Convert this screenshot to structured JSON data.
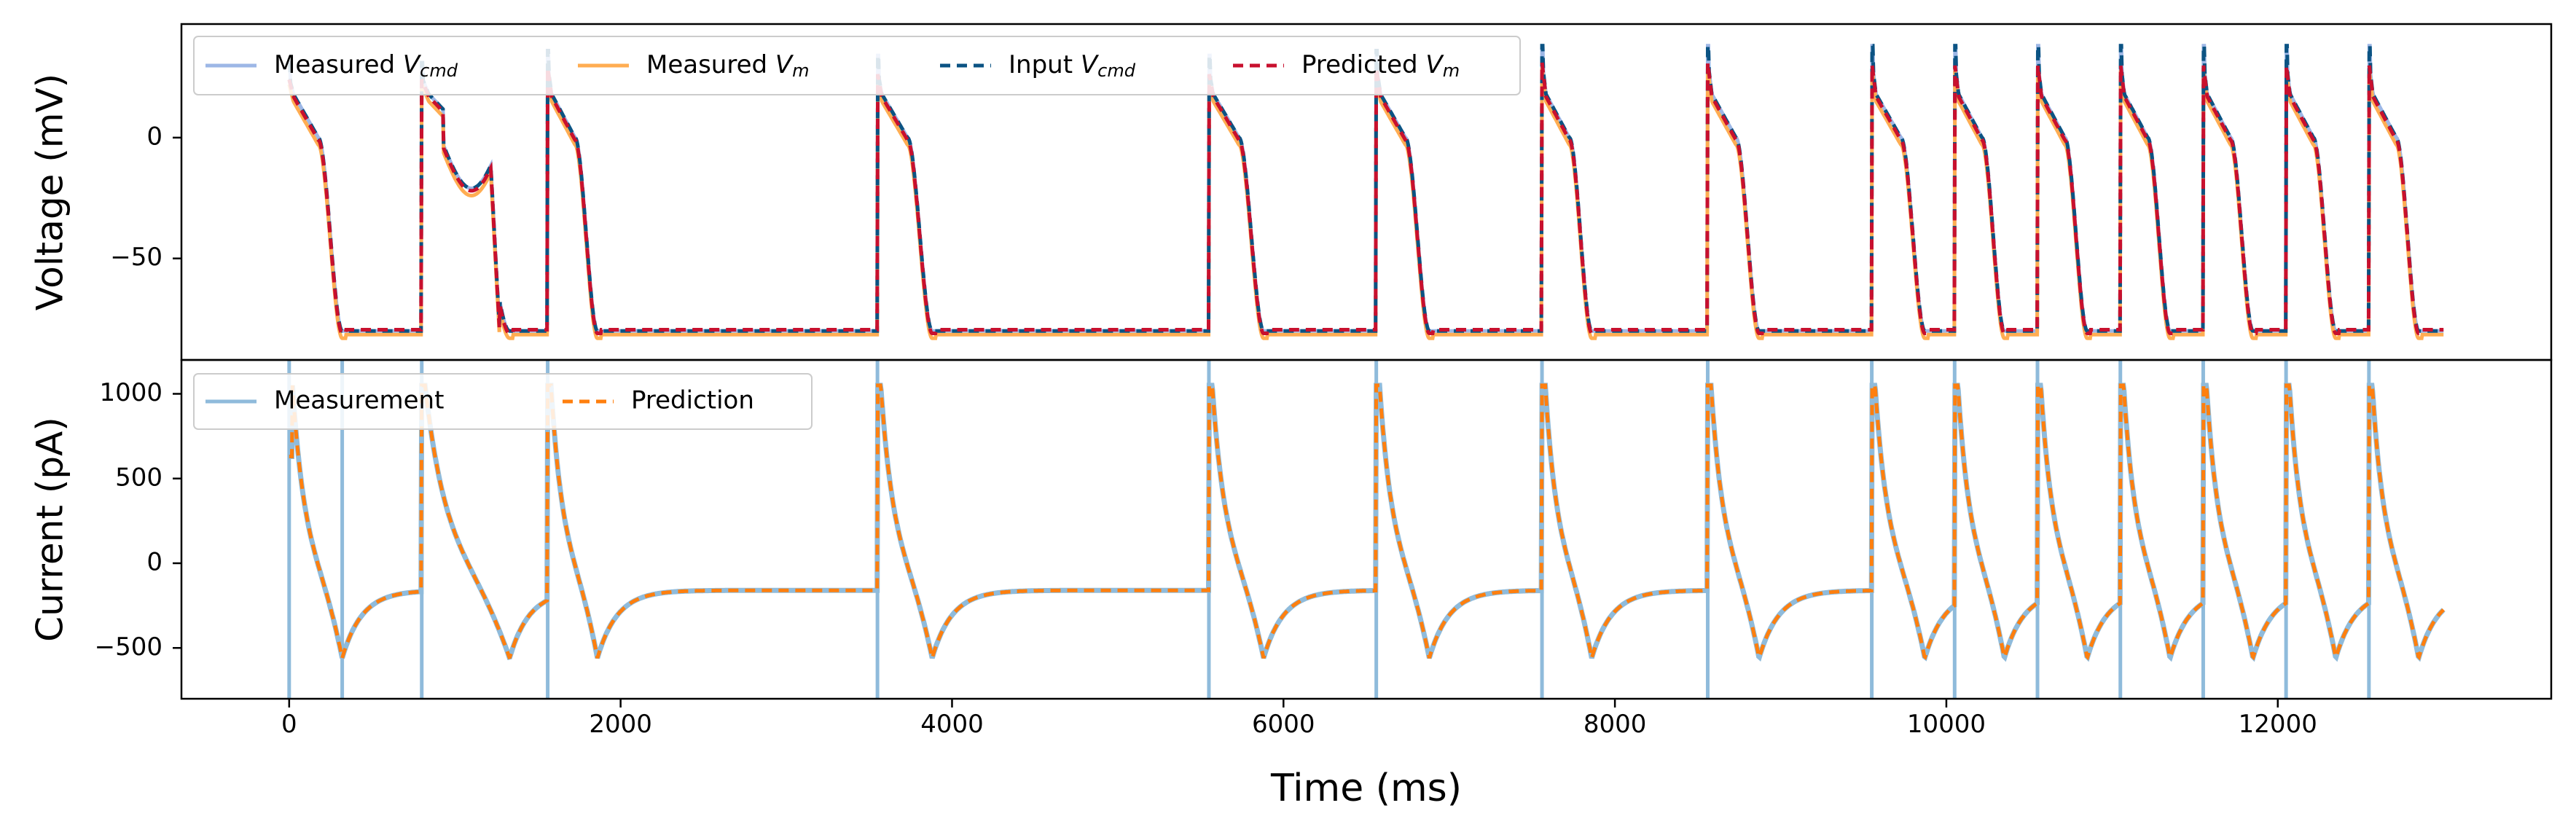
{
  "chart_data": {
    "type": "line",
    "xlabel": "Time (ms)",
    "x_ticks": [
      0,
      2000,
      4000,
      6000,
      8000,
      10000,
      12000
    ],
    "xlim": [
      -650,
      13650
    ],
    "panels": [
      {
        "id": "voltage",
        "ylabel": "Voltage (mV)",
        "ylim": [
          -92,
          47
        ],
        "y_ticks": [
          0,
          -50
        ],
        "legend_position": "top-left",
        "legend_columns": 4,
        "series": [
          {
            "name_prefix": "Measured ",
            "name_sym": "V",
            "name_sub": "cmd",
            "color": "#9db7e6",
            "style": "solid",
            "kind": "vcmd"
          },
          {
            "name_prefix": "Measured ",
            "name_sym": "V",
            "name_sub": "m",
            "color": "#ffad52",
            "style": "solid",
            "kind": "vm_meas"
          },
          {
            "name_prefix": "Input ",
            "name_sym": "V",
            "name_sub": "cmd",
            "color": "#0b5383",
            "style": "dashed",
            "kind": "vcmd"
          },
          {
            "name_prefix": "Predicted ",
            "name_sym": "V",
            "name_sub": "m",
            "color": "#c8102e",
            "style": "dashed",
            "kind": "vm_pred"
          }
        ]
      },
      {
        "id": "current",
        "ylabel": "Current (pA)",
        "ylim": [
          -800,
          1200
        ],
        "y_ticks": [
          1000,
          500,
          0,
          -500
        ],
        "legend_position": "top-left",
        "legend_columns": 2,
        "series": [
          {
            "name": "Measurement",
            "color": "#8fbbdb",
            "style": "solid",
            "kind": "i_meas"
          },
          {
            "name": "Prediction",
            "color": "#ff7f0e",
            "style": "dashed",
            "kind": "i_pred"
          }
        ]
      }
    ],
    "protocol": {
      "resting_mV": -80,
      "end_ms": 13000,
      "beats": [
        {
          "start": 0,
          "apd": 320,
          "peak": 25
        },
        {
          "start": 800,
          "apd": 530,
          "peak": 25
        },
        {
          "start": 1560,
          "apd": 300,
          "peak": 30
        },
        {
          "start": 3550,
          "apd": 330,
          "peak": 28
        },
        {
          "start": 5550,
          "apd": 330,
          "peak": 28
        },
        {
          "start": 6560,
          "apd": 320,
          "peak": 30
        },
        {
          "start": 7560,
          "apd": 300,
          "peak": 32
        },
        {
          "start": 8560,
          "apd": 310,
          "peak": 32
        },
        {
          "start": 9550,
          "apd": 320,
          "peak": 32
        },
        {
          "start": 10050,
          "apd": 300,
          "peak": 32
        },
        {
          "start": 10550,
          "apd": 300,
          "peak": 32
        },
        {
          "start": 11050,
          "apd": 300,
          "peak": 32
        },
        {
          "start": 11550,
          "apd": 300,
          "peak": 32
        },
        {
          "start": 12050,
          "apd": 300,
          "peak": 32
        },
        {
          "start": 12550,
          "apd": 300,
          "peak": 32
        }
      ],
      "current_spikes_ms": [
        0,
        320,
        800,
        1560,
        3550,
        5550,
        6560,
        7560,
        8560,
        9550,
        10050,
        10550,
        11050,
        11550,
        12050,
        12550
      ],
      "current_peak_pA": 1050,
      "current_trough_pA": -560,
      "current_baseline_pA": -160
    }
  }
}
